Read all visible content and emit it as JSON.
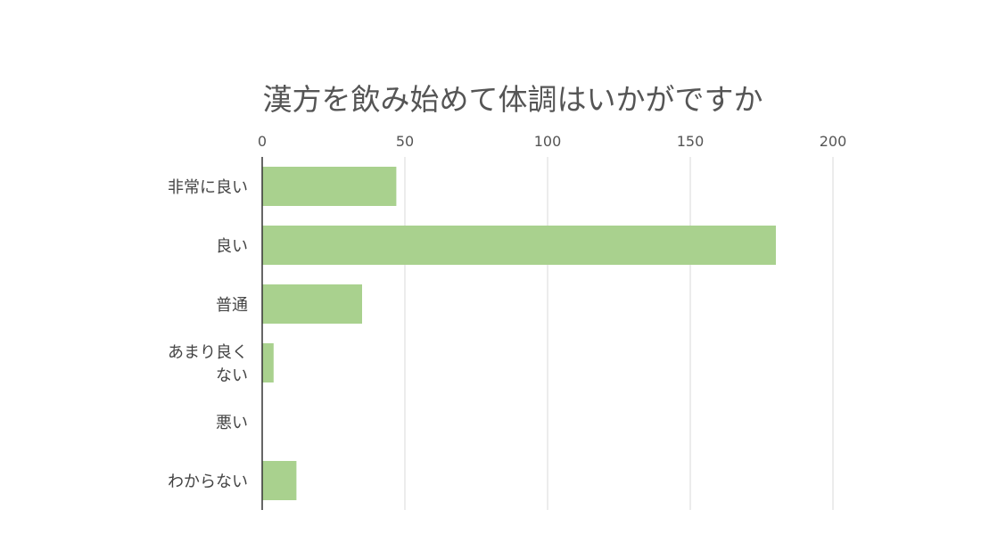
{
  "chart_data": {
    "type": "bar",
    "orientation": "horizontal",
    "title": "漢方を飲み始めて体調はいかがですか",
    "xlabel": "",
    "ylabel": "",
    "xlim": [
      0,
      200
    ],
    "ticks": [
      0,
      50,
      100,
      150,
      200
    ],
    "tick_position": "top",
    "grid": true,
    "legend": "none",
    "categories": [
      "非常に良い",
      "良い",
      "普通",
      "あまり良くない",
      "悪い",
      "わからない"
    ],
    "category_label_lines": [
      [
        "非常に良い"
      ],
      [
        "良い"
      ],
      [
        "普通"
      ],
      [
        "あまり良く",
        "ない"
      ],
      [
        "悪い"
      ],
      [
        "わからない"
      ]
    ],
    "values": [
      47,
      180,
      35,
      4,
      0,
      12
    ],
    "bar_color": "#a9d18e"
  }
}
